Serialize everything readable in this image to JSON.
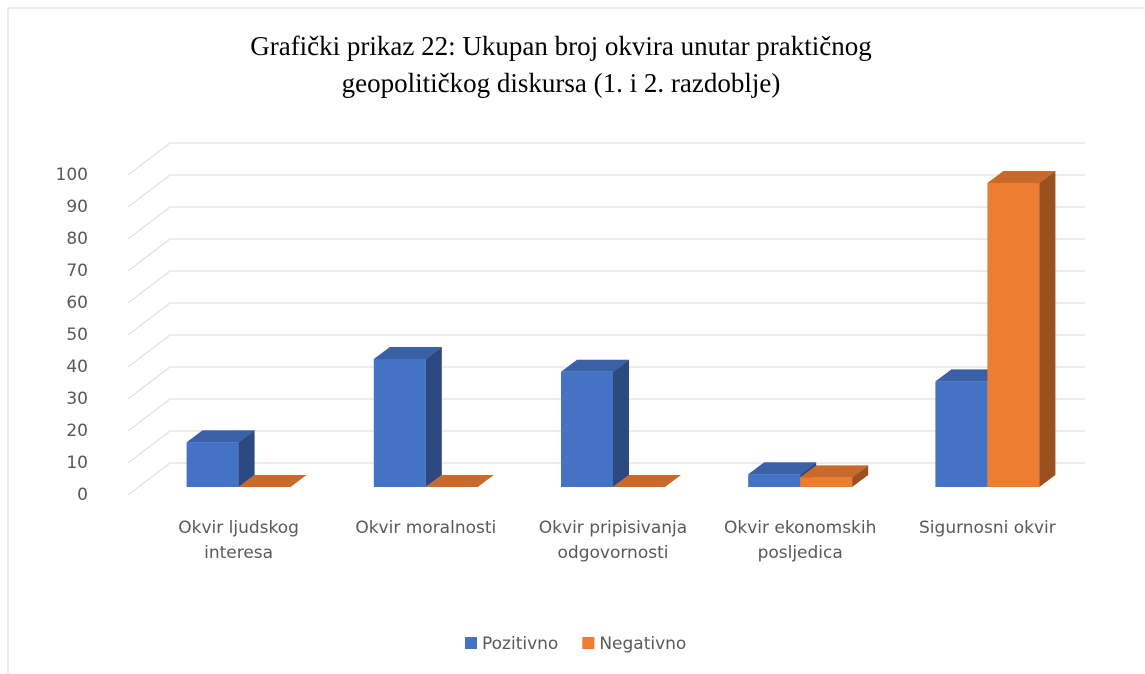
{
  "chart_data": {
    "type": "bar3d",
    "title": "Grafički prikaz 22: Ukupan broj okvira unutar praktičnog geopolitičkog diskursa (1. i 2. razdoblje)",
    "categories": [
      "Okvir ljudskog interesa",
      "Okvir moralnosti",
      "Okvir pripisivanja odgovornosti",
      "Okvir ekonomskih posljedica",
      "Sigurnosni okvir"
    ],
    "series": [
      {
        "name": "Pozitivno",
        "color": "#4472c4",
        "values": [
          14,
          40,
          36,
          4,
          33
        ]
      },
      {
        "name": "Negativno",
        "color": "#ed7d31",
        "values": [
          0,
          0,
          0,
          3,
          95
        ]
      }
    ],
    "ylim": [
      0,
      100
    ],
    "yticks": [
      0,
      10,
      20,
      30,
      40,
      50,
      60,
      70,
      80,
      90,
      100
    ],
    "grid": true,
    "legend": "bottom"
  }
}
